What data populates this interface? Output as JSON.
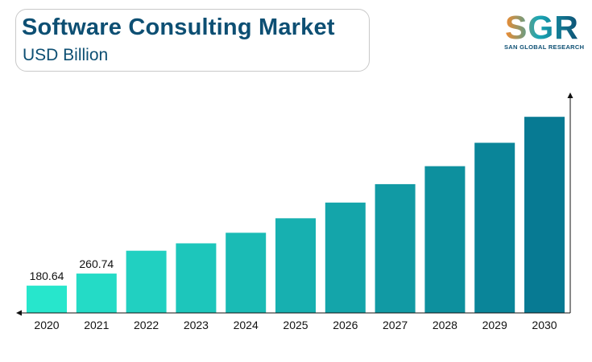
{
  "header": {
    "title": "Software Consulting Market",
    "subtitle": "USD Billion"
  },
  "logo": {
    "mark": "SGR",
    "text": "SAN GLOBAL RESEARCH"
  },
  "colors": {
    "title": "#0d4f73",
    "bar_start": "#27e6cc",
    "bar_end": "#077a93",
    "axis": "#111111"
  },
  "chart_data": {
    "type": "bar",
    "title": "Software Consulting Market",
    "ylabel": "USD Billion",
    "categories": [
      "2020",
      "2021",
      "2022",
      "2023",
      "2024",
      "2025",
      "2026",
      "2027",
      "2028",
      "2029",
      "2030"
    ],
    "values": [
      180.64,
      260.74,
      412,
      461,
      531,
      627,
      731,
      853,
      972,
      1127,
      1299
    ],
    "data_labels": [
      "180.64",
      "260.74",
      "",
      "",
      "",
      "",
      "",
      "",
      "",
      "",
      ""
    ],
    "ylim": [
      0,
      1460
    ],
    "grid": false,
    "legend": "none"
  }
}
